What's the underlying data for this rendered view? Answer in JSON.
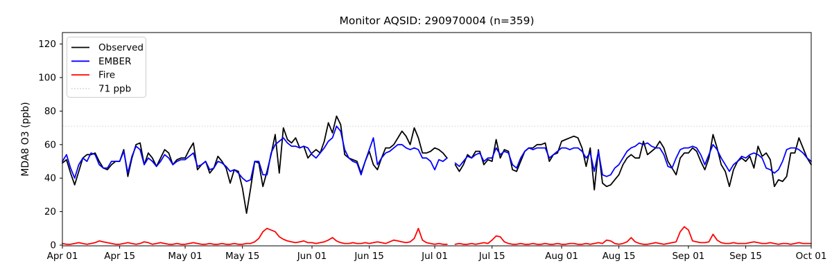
{
  "chart_data": {
    "type": "line",
    "title": "Monitor AQSID: 290970004 (n=359)",
    "ylabel": "MDA8 O3 (ppb)",
    "background": "#ffffff",
    "spine_color": "#000000",
    "ylim": [
      0,
      126.9
    ],
    "yticks": [
      0,
      20,
      40,
      60,
      80,
      100,
      120
    ],
    "x_start": "Apr 01",
    "x_end": "Oct 01",
    "n_points": 184,
    "x_unit": "days since Apr 01",
    "gap_dates": [
      "Jul 05"
    ],
    "grid": false,
    "legend_position": "upper-left",
    "xticks": [
      {
        "day": 0,
        "label": "Apr 01"
      },
      {
        "day": 14,
        "label": "Apr 15"
      },
      {
        "day": 30,
        "label": "May 01"
      },
      {
        "day": 44,
        "label": "May 15"
      },
      {
        "day": 61,
        "label": "Jun 01"
      },
      {
        "day": 75,
        "label": "Jun 15"
      },
      {
        "day": 91,
        "label": "Jul 01"
      },
      {
        "day": 105,
        "label": "Jul 15"
      },
      {
        "day": 122,
        "label": "Aug 01"
      },
      {
        "day": 136,
        "label": "Aug 15"
      },
      {
        "day": 153,
        "label": "Sep 01"
      },
      {
        "day": 167,
        "label": "Sep 15"
      },
      {
        "day": 183,
        "label": "Oct 01"
      }
    ],
    "threshold": {
      "value": 71,
      "label": "71 ppb",
      "color": "#d3d3d3",
      "style": "dotted"
    },
    "legend": [
      {
        "label": "Observed",
        "color": "#000000",
        "dash": null
      },
      {
        "label": "EMBER",
        "color": "#0000ff",
        "dash": null
      },
      {
        "label": "Fire",
        "color": "#ff0000",
        "dash": null
      },
      {
        "label": "71 ppb",
        "color": "#d3d3d3",
        "dash": "dotted"
      }
    ],
    "series": [
      {
        "name": "Observed",
        "color": "#000000",
        "values": [
          49,
          51,
          43,
          36,
          44,
          52,
          54,
          54,
          55,
          50,
          46,
          45,
          48,
          50,
          50,
          57,
          41,
          52,
          60,
          61,
          48,
          55,
          52,
          47,
          52,
          57,
          55,
          48,
          51,
          52,
          52,
          57,
          61,
          45,
          48,
          50,
          43,
          46,
          53,
          50,
          46,
          37,
          45,
          44,
          34,
          19,
          34,
          50,
          49,
          35,
          44,
          54,
          66,
          43,
          70,
          63,
          61,
          64,
          58,
          59,
          52,
          55,
          57,
          55,
          62,
          73,
          67,
          77,
          72,
          54,
          52,
          51,
          50,
          43,
          50,
          56,
          48,
          45,
          52,
          58,
          58,
          60,
          64,
          68,
          65,
          60,
          70,
          64,
          55,
          55,
          56,
          58,
          57,
          55,
          52,
          null,
          48,
          44,
          48,
          54,
          52,
          56,
          56,
          48,
          51,
          50,
          63,
          52,
          57,
          56,
          45,
          44,
          50,
          56,
          58,
          58,
          60,
          60,
          61,
          50,
          54,
          55,
          62,
          63,
          64,
          65,
          64,
          58,
          47,
          58,
          33,
          57,
          37,
          35,
          36,
          39,
          42,
          48,
          52,
          54,
          52,
          52,
          62,
          54,
          56,
          58,
          62,
          58,
          50,
          46,
          42,
          52,
          55,
          55,
          58,
          56,
          50,
          45,
          52,
          66,
          58,
          48,
          44,
          35,
          45,
          50,
          52,
          50,
          53,
          46,
          59,
          53,
          55,
          51,
          35,
          39,
          38,
          41,
          55,
          55,
          64,
          58,
          52,
          48
        ]
      },
      {
        "name": "EMBER",
        "color": "#0000ff",
        "values": [
          50,
          54,
          46,
          40,
          48,
          52,
          50,
          55,
          54,
          48,
          46,
          46,
          50,
          50,
          50,
          56,
          43,
          53,
          59,
          57,
          48,
          52,
          50,
          47,
          50,
          54,
          52,
          48,
          50,
          51,
          51,
          53,
          55,
          47,
          48,
          50,
          45,
          46,
          50,
          49,
          47,
          44,
          45,
          43,
          40,
          38,
          39,
          50,
          50,
          42,
          42,
          55,
          60,
          62,
          64,
          61,
          59,
          59,
          58,
          59,
          58,
          54,
          52,
          55,
          58,
          62,
          64,
          71,
          68,
          57,
          52,
          50,
          49,
          42,
          50,
          57,
          64,
          48,
          52,
          55,
          56,
          58,
          60,
          60,
          58,
          57,
          58,
          57,
          52,
          52,
          50,
          45,
          51,
          50,
          52,
          null,
          49,
          47,
          50,
          53,
          52,
          54,
          55,
          50,
          52,
          52,
          58,
          54,
          56,
          55,
          48,
          46,
          52,
          56,
          58,
          57,
          58,
          58,
          58,
          52,
          54,
          56,
          58,
          58,
          57,
          58,
          58,
          56,
          52,
          55,
          44,
          56,
          42,
          41,
          42,
          46,
          48,
          52,
          56,
          58,
          59,
          61,
          60,
          61,
          59,
          58,
          58,
          54,
          47,
          46,
          52,
          57,
          58,
          58,
          59,
          58,
          54,
          48,
          54,
          60,
          57,
          52,
          48,
          44,
          48,
          50,
          53,
          52,
          54,
          55,
          54,
          52,
          46,
          45,
          43,
          45,
          50,
          57,
          58,
          58,
          57,
          55,
          52,
          50
        ]
      },
      {
        "name": "Fire",
        "color": "#ff0000",
        "values": [
          1,
          0.5,
          0.5,
          1,
          1.5,
          1,
          0.5,
          1,
          1.5,
          2.5,
          2,
          1.5,
          1,
          0.5,
          0.5,
          1,
          1.5,
          1,
          0.5,
          1,
          2,
          1.5,
          0.5,
          1,
          1.5,
          1,
          0.5,
          0.5,
          1,
          0.5,
          0.5,
          1,
          1.5,
          1,
          0.5,
          0.5,
          1,
          0.5,
          0.5,
          1,
          0.5,
          0.5,
          1,
          0.5,
          0.5,
          1,
          1,
          2,
          4,
          8,
          10,
          9,
          8,
          5,
          3.5,
          2.5,
          2,
          1.5,
          2,
          2.5,
          1.5,
          1.5,
          1,
          1.5,
          2,
          3,
          4.5,
          2.5,
          1.5,
          1,
          1,
          1.5,
          1,
          1,
          1.5,
          1,
          1.5,
          2,
          1.5,
          1,
          2,
          3,
          2.5,
          2,
          1.5,
          2,
          4,
          10,
          3,
          1.5,
          1,
          0.5,
          1,
          0.5,
          0.5,
          null,
          0.5,
          1,
          0.5,
          0.5,
          1,
          0.5,
          1,
          1.5,
          1,
          3,
          5.5,
          5,
          2,
          1,
          0.5,
          0.5,
          1,
          0.5,
          0.5,
          1,
          0.5,
          0.5,
          1,
          0.5,
          0.5,
          1,
          0.5,
          0.5,
          1,
          1,
          0.5,
          0.5,
          1,
          0.5,
          1,
          1.5,
          1,
          3,
          2.5,
          1,
          0.5,
          1,
          2,
          4.5,
          2,
          1,
          0.5,
          0.5,
          1,
          1.5,
          1,
          0.5,
          1,
          1.5,
          2,
          8,
          11,
          9,
          2.5,
          2,
          1.5,
          1.5,
          2,
          6.5,
          3,
          1.5,
          1,
          1,
          1.5,
          1,
          1,
          1,
          1.5,
          2,
          1.5,
          1,
          1,
          1.5,
          1,
          0.5,
          1,
          1,
          0.5,
          1,
          1.5,
          1,
          1,
          1
        ]
      }
    ]
  }
}
